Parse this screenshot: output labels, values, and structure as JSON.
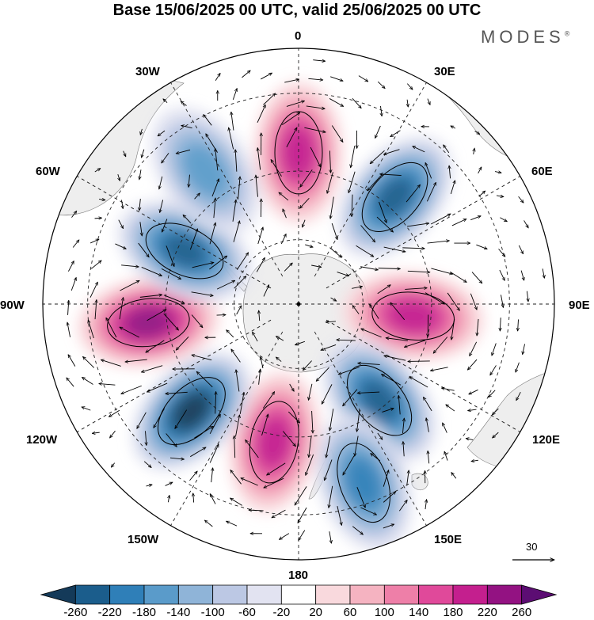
{
  "title": "Base 15/06/2025 00 UTC, valid 25/06/2025 00 UTC",
  "brand": "MODES",
  "brand_mark": "®",
  "longitude_labels": {
    "lon_0": "0",
    "lon_30e": "30E",
    "lon_60e": "60E",
    "lon_90e": "90E",
    "lon_120e": "120E",
    "lon_150e": "150E",
    "lon_180": "180",
    "lon_150w": "150W",
    "lon_120w": "120W",
    "lon_90w": "90W",
    "lon_60w": "60W",
    "lon_30w": "30W"
  },
  "vector_reference": {
    "value": "30"
  },
  "colorbar": {
    "colors": [
      "#143a59",
      "#1b5d8c",
      "#2f7fb8",
      "#5a9bca",
      "#8fb4d8",
      "#bcc8e4",
      "#e2e3f1",
      "#ffffff",
      "#f9d9dd",
      "#f5b3c1",
      "#ee7fa8",
      "#e0499a",
      "#c41f8e",
      "#931282",
      "#5c0d73"
    ],
    "tick_labels": [
      "-260",
      "-220",
      "-180",
      "-140",
      "-100",
      "-60",
      "-20",
      "20",
      "60",
      "100",
      "140",
      "180",
      "220",
      "260"
    ]
  },
  "anomaly_centers": [
    {
      "sign": "positive",
      "lon": 0,
      "lat": -45,
      "value": 180
    },
    {
      "sign": "negative",
      "lon": 42,
      "lat": -47,
      "value": -250
    },
    {
      "sign": "positive",
      "lon": 96,
      "lat": -55,
      "value": 200
    },
    {
      "sign": "negative",
      "lon": 140,
      "lat": -52,
      "value": -220
    },
    {
      "sign": "negative",
      "lon": 160,
      "lat": -35,
      "value": -180
    },
    {
      "sign": "positive",
      "lon": -170,
      "lat": -48,
      "value": 200
    },
    {
      "sign": "negative",
      "lon": -135,
      "lat": -45,
      "value": -260
    },
    {
      "sign": "positive",
      "lon": -97,
      "lat": -45,
      "value": 230
    },
    {
      "sign": "negative",
      "lon": -65,
      "lat": -52,
      "value": -220
    },
    {
      "sign": "negative",
      "lon": -35,
      "lat": -42,
      "value": -150
    }
  ]
}
